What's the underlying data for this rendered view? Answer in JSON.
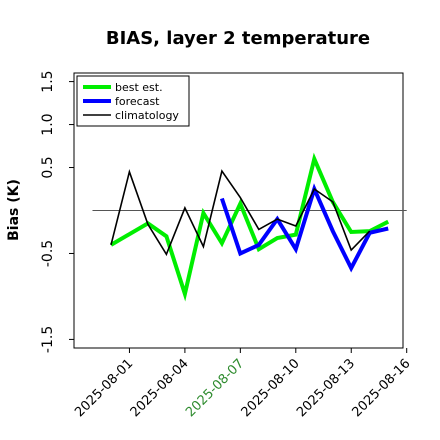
{
  "chart_data": {
    "type": "line",
    "title": "BIAS, layer 2 temperature",
    "ylabel": "Bias (K)",
    "xlabel": "",
    "ylim": [
      -1.6,
      1.6
    ],
    "xlim": [
      -1.0,
      16.8
    ],
    "yticks": [
      1.5,
      1.0,
      0.5,
      -0.5,
      -1.5
    ],
    "ytick_labels": [
      "1.5",
      "1.0",
      "0.5",
      "-0.5",
      "-1.5"
    ],
    "xticks": [
      {
        "x": 2,
        "label": "2025-08-01"
      },
      {
        "x": 5,
        "label": "2025-08-04"
      },
      {
        "x": 8,
        "label": "2025-08-07",
        "color": "#2e8b2e"
      },
      {
        "x": 11,
        "label": "2025-08-10"
      },
      {
        "x": 14,
        "label": "2025-08-13"
      },
      {
        "x": 17,
        "label": "2025-08-16"
      }
    ],
    "reference_line": 0,
    "legend_position": "top-left",
    "series": [
      {
        "name": "best est.",
        "color": "#00ee00",
        "width": 4,
        "x": [
          1,
          3,
          4,
          5,
          6,
          7,
          8,
          9,
          10,
          11,
          12,
          13,
          14,
          15,
          16
        ],
        "y": [
          -0.4,
          -0.15,
          -0.3,
          -0.97,
          -0.03,
          -0.38,
          0.08,
          -0.45,
          -0.32,
          -0.28,
          0.6,
          0.1,
          -0.25,
          -0.24,
          -0.13
        ]
      },
      {
        "name": "forecast",
        "color": "#0000ff",
        "width": 4,
        "x": [
          7,
          8,
          9,
          10,
          11,
          12,
          13,
          14,
          15,
          16
        ],
        "y": [
          0.14,
          -0.5,
          -0.4,
          -0.1,
          -0.45,
          0.25,
          -0.24,
          -0.67,
          -0.26,
          -0.21
        ]
      },
      {
        "name": "climatology",
        "color": "#000000",
        "width": 1.6,
        "x": [
          1,
          2,
          3,
          4,
          5,
          6,
          7,
          8,
          9,
          10,
          11,
          12,
          13,
          14,
          15
        ],
        "y": [
          -0.4,
          0.45,
          -0.16,
          -0.51,
          0.03,
          -0.42,
          0.46,
          0.15,
          -0.22,
          -0.1,
          -0.18,
          0.25,
          0.1,
          -0.46,
          -0.24
        ]
      }
    ]
  }
}
